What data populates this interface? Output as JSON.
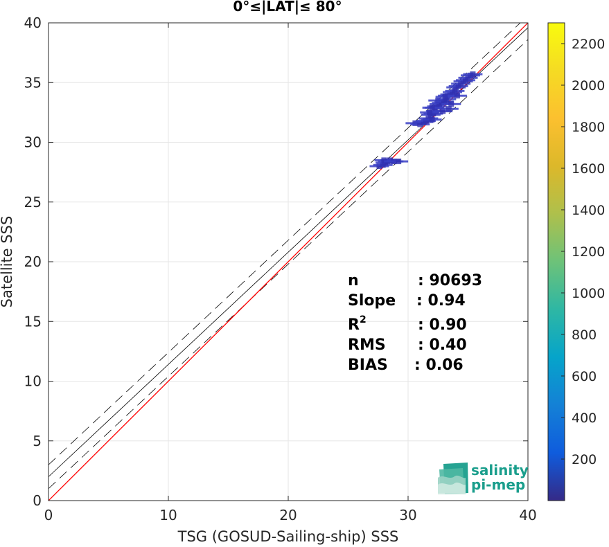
{
  "chart_data": {
    "type": "heatmap",
    "title_prefix": "0°≤|LAT|≤",
    "title_suffix": " 80°",
    "xlabel": "TSG (GOSUD-Sailing-ship) SSS",
    "ylabel": "Satellite SSS",
    "xlim": [
      0,
      40
    ],
    "ylim": [
      0,
      40
    ],
    "xticks": [
      "0",
      "10",
      "20",
      "30",
      "40"
    ],
    "yticks": [
      "0",
      "5",
      "10",
      "15",
      "20",
      "25",
      "30",
      "35",
      "40"
    ],
    "grid": true,
    "reference_lines": {
      "identity": {
        "slope": 1,
        "intercept": 0,
        "color": "#ff0000"
      },
      "fit": {
        "slope": 0.94,
        "intercept": 2.0,
        "color": "#000000"
      },
      "fit_offset": 1.0
    },
    "density_points": [
      [
        27.6,
        28.0
      ],
      [
        27.9,
        28.1
      ],
      [
        28.1,
        28.3
      ],
      [
        28.3,
        28.4
      ],
      [
        28.5,
        28.5
      ],
      [
        28.0,
        28.5
      ],
      [
        28.8,
        28.4
      ],
      [
        29.2,
        28.4
      ],
      [
        30.6,
        31.6
      ],
      [
        31.0,
        31.5
      ],
      [
        31.3,
        31.7
      ],
      [
        31.5,
        31.8
      ],
      [
        31.7,
        32.0
      ],
      [
        32.0,
        31.9
      ],
      [
        31.9,
        32.3
      ],
      [
        32.1,
        32.4
      ],
      [
        32.3,
        32.6
      ],
      [
        32.2,
        32.9
      ],
      [
        32.4,
        33.0
      ],
      [
        32.6,
        33.2
      ],
      [
        32.8,
        33.3
      ],
      [
        32.5,
        33.5
      ],
      [
        33.0,
        33.4
      ],
      [
        33.2,
        33.6
      ],
      [
        33.3,
        33.9
      ],
      [
        33.5,
        34.0
      ],
      [
        33.7,
        34.2
      ],
      [
        33.9,
        34.3
      ],
      [
        34.0,
        34.6
      ],
      [
        34.2,
        34.7
      ],
      [
        34.4,
        34.9
      ],
      [
        34.6,
        35.1
      ],
      [
        34.8,
        35.2
      ],
      [
        35.0,
        35.4
      ],
      [
        35.2,
        35.6
      ],
      [
        35.4,
        35.7
      ],
      [
        32.9,
        32.6
      ],
      [
        33.4,
        32.8
      ],
      [
        33.1,
        33.8
      ],
      [
        32.0,
        32.9
      ],
      [
        31.8,
        32.5
      ],
      [
        33.6,
        33.2
      ],
      [
        34.1,
        33.9
      ]
    ],
    "colorbar": {
      "ticks": [
        "200",
        "400",
        "600",
        "800",
        "1000",
        "1200",
        "1400",
        "1600",
        "1800",
        "2000",
        "2200"
      ],
      "range": [
        0,
        2300
      ],
      "colormap": "parula"
    }
  },
  "stats": {
    "n_label": "n",
    "n_value": ": 90693",
    "slope_label": "Slope",
    "slope_value": ": 0.94",
    "r2_label": "R",
    "r2_sup": "2",
    "r2_value": ": 0.90",
    "rms_label": "RMS",
    "rms_value": ": 0.40",
    "bias_label": "BIAS",
    "bias_value": ": 0.06"
  },
  "logo": {
    "line1": "salinity",
    "line2": "pi-mep",
    "color": "#1a9e8c"
  }
}
